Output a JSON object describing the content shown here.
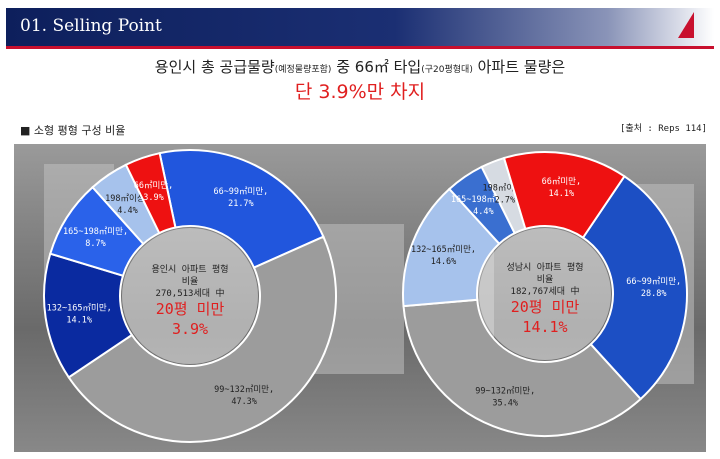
{
  "header": {
    "title": "01. Selling Point"
  },
  "headline": {
    "line1_pre": "용인시 총 공급물량",
    "line1_note": "(예정물량포함)",
    "line1_mid": " 중 66㎡ 타입",
    "line1_note2": "(구20평형대)",
    "line1_post": " 아파트 물량은",
    "line2": "단 3.9%만 차지"
  },
  "subtitle": "■ 소형 평형 구성 비율",
  "source": "[출처 : Reps 114]",
  "colors": {
    "red": "#ee1111",
    "navy": "#0a2aa0",
    "blue": "#2156dd",
    "mid_blue": "#3a6fd0",
    "light_blue": "#a6c2ec",
    "gray": "#9c9c9c",
    "pale": "#d6dbe2"
  },
  "chart_data": [
    {
      "type": "pie",
      "center_lines": [
        "용인시 아파트 평형",
        "비율",
        "270,513세대 中"
      ],
      "center_highlight": [
        "20평 미만",
        "3.9%"
      ],
      "slices": [
        {
          "label": "66~99㎡미만,",
          "value": 21.7,
          "value_text": "21.7%",
          "color": "#2156dd"
        },
        {
          "label": "99~132㎡미만,",
          "value": 47.3,
          "value_text": "47.3%",
          "color": "#9c9c9c"
        },
        {
          "label": "132~165㎡미만,",
          "value": 14.1,
          "value_text": "14.1%",
          "color": "#0a2aa0"
        },
        {
          "label": "165~198㎡미만,",
          "value": 8.7,
          "value_text": "8.7%",
          "color": "#2a62ea"
        },
        {
          "label": "198㎡이상,",
          "value": 4.4,
          "value_text": "4.4%",
          "color": "#a6c2ec"
        },
        {
          "label": "66㎡미만,",
          "value": 3.9,
          "value_text": "3.9%",
          "color": "#ee1111"
        }
      ]
    },
    {
      "type": "pie",
      "center_lines": [
        "성남시 아파트 평형",
        "비율",
        "182,767세대 中"
      ],
      "center_highlight": [
        "20평 미만",
        "14.1%"
      ],
      "slices": [
        {
          "label": "66~99㎡미만,",
          "value": 28.8,
          "value_text": "28.8%",
          "color": "#1c4fc4"
        },
        {
          "label": "99~132㎡미만,",
          "value": 35.4,
          "value_text": "35.4%",
          "color": "#9c9c9c"
        },
        {
          "label": "132~165㎡미만,",
          "value": 14.6,
          "value_text": "14.6%",
          "color": "#a6c2ec"
        },
        {
          "label": "165~198㎡미만,",
          "value": 4.4,
          "value_text": "4.4%",
          "color": "#3a6fd0"
        },
        {
          "label": "198㎡이상,",
          "value": 2.7,
          "value_text": "2.7%",
          "color": "#d6dbe2"
        },
        {
          "label": "66㎡미만,",
          "value": 14.1,
          "value_text": "14.1%",
          "color": "#ee1111"
        }
      ]
    }
  ]
}
